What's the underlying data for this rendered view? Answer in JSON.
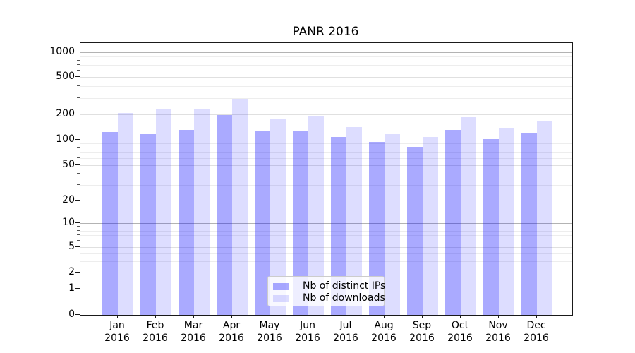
{
  "chart_data": {
    "type": "bar",
    "title": "PANR 2016",
    "categories": [
      "Jan",
      "Feb",
      "Mar",
      "Apr",
      "May",
      "Jun",
      "Jul",
      "Aug",
      "Sep",
      "Oct",
      "Nov",
      "Dec"
    ],
    "category_year": "2016",
    "series": [
      {
        "name": "Nb of distinct IPs",
        "color": "rgba(0,0,255,0.335)",
        "values": [
          124,
          116,
          130,
          196,
          128,
          127,
          108,
          94,
          82,
          131,
          101,
          118
        ]
      },
      {
        "name": "Nb of downloads",
        "color": "rgba(0,0,255,0.135)",
        "values": [
          205,
          226,
          228,
          291,
          174,
          190,
          140,
          115,
          107,
          185,
          138,
          164
        ]
      }
    ],
    "xlabel": "",
    "ylabel": "",
    "yscale": "symlog",
    "y_ticks": [
      0,
      1,
      2,
      5,
      10,
      20,
      50,
      100,
      200,
      500,
      1000
    ],
    "ylim": [
      0,
      1300
    ],
    "grid": true,
    "legend_position": "lower center"
  },
  "colors": {
    "grid_decade": "#b3b3b3",
    "grid_labeled": "#e0e0e0",
    "grid_minor": "#ededed",
    "spine": "#1a1a1a",
    "text": "#000000"
  }
}
